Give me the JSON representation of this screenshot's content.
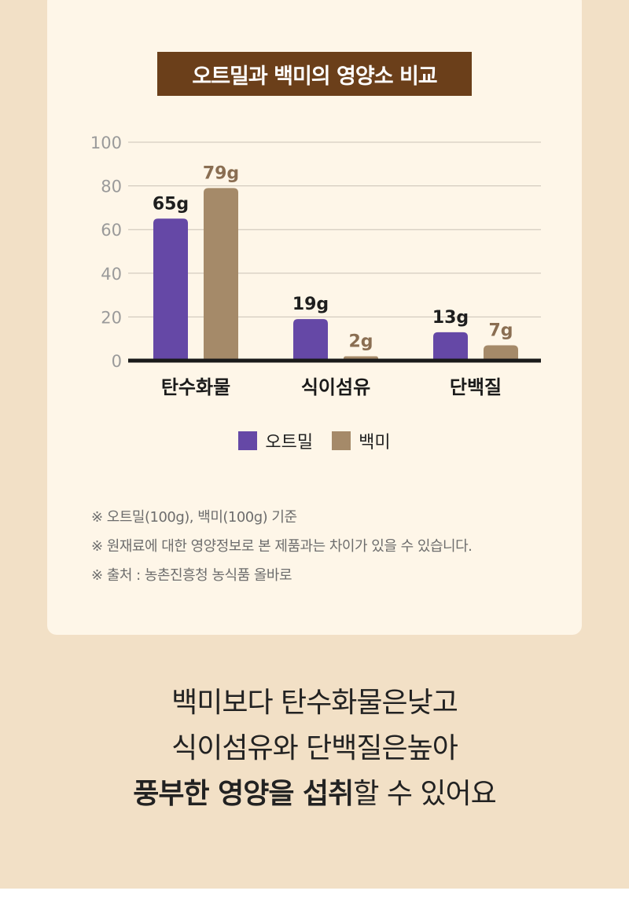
{
  "colors": {
    "oatmeal": "#6548a6",
    "white_rice": "#a58a69",
    "title_bg": "#6b3f1a",
    "oatmeal_label": "#1e1e1e",
    "white_rice_label": "#8a6e52"
  },
  "chart_data": {
    "type": "bar",
    "title": "오트밀과 백미의 영양소 비교",
    "categories": [
      "탄수화물",
      "식이섬유",
      "단백질"
    ],
    "series": [
      {
        "name": "오트밀",
        "values": [
          65,
          19,
          13
        ],
        "labels": [
          "65g",
          "19g",
          "13g"
        ]
      },
      {
        "name": "백미",
        "values": [
          79,
          2,
          7
        ],
        "labels": [
          "79g",
          "2g",
          "7g"
        ]
      }
    ],
    "yticks": [
      0,
      20,
      40,
      60,
      80,
      100
    ],
    "ylim": [
      0,
      100
    ],
    "grid": true,
    "legend_position": "bottom"
  },
  "notes": [
    "※ 오트밀(100g), 백미(100g) 기준",
    "※ 원재료에 대한 영양정보로 본 제품과는 차이가 있을 수 있습니다.",
    "※ 출처 : 농촌진흥청 농식품 올바로"
  ],
  "message": {
    "line1": "백미보다 탄수화물은낮고",
    "line2": "식이섬유와 단백질은높아",
    "line3_bold": "풍부한 영양을 섭취",
    "line3_rest": "할 수 있어요"
  }
}
